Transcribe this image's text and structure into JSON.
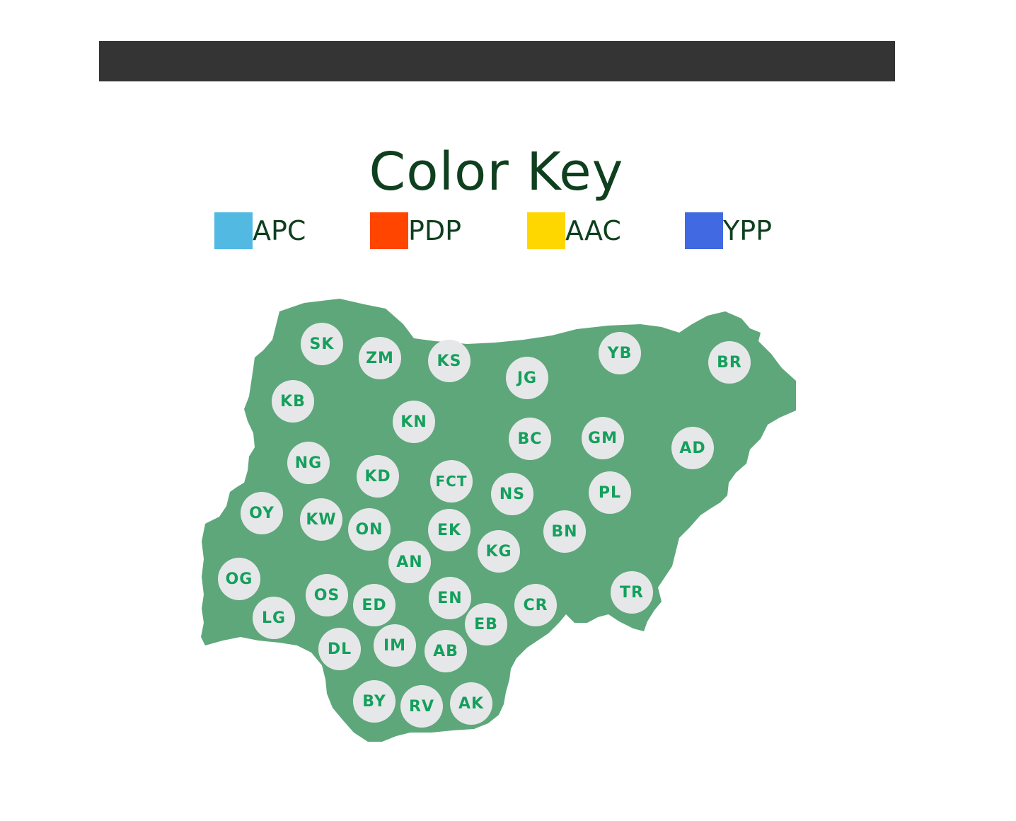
{
  "legend": {
    "title": "Color Key",
    "items": [
      {
        "label": "APC",
        "color": "#52b9e2"
      },
      {
        "label": "PDP",
        "color": "#ff4500"
      },
      {
        "label": "AAC",
        "color": "#ffd700"
      },
      {
        "label": "YPP",
        "color": "#4169e1"
      }
    ]
  },
  "map": {
    "fill_color": "#5ea77b",
    "bubble_color": "#e6e7e9",
    "label_color": "#14a05c",
    "states": [
      "SK",
      "ZM",
      "KS",
      "JG",
      "YB",
      "BR",
      "KB",
      "KN",
      "BC",
      "GM",
      "AD",
      "NG",
      "KD",
      "FCT",
      "NS",
      "PL",
      "OY",
      "KW",
      "ON",
      "EK",
      "BN",
      "KG",
      "AN",
      "OG",
      "OS",
      "ED",
      "EN",
      "CR",
      "TR",
      "LG",
      "EB",
      "DL",
      "IM",
      "AB",
      "BY",
      "RV",
      "AK"
    ]
  }
}
